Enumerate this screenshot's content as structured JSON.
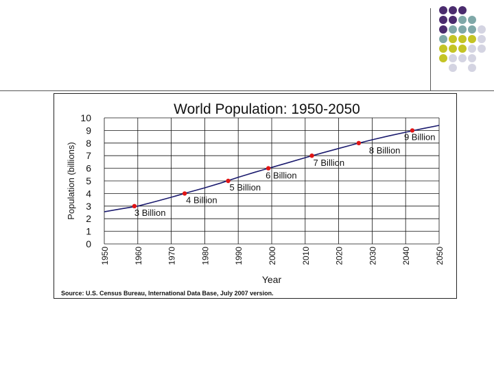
{
  "chart_data": {
    "type": "line",
    "title": "World Population: 1950-2050",
    "xlabel": "Year",
    "ylabel": "Population (billions)",
    "xlim": [
      1950,
      2050
    ],
    "ylim": [
      0,
      10
    ],
    "x_ticks": [
      "1950",
      "1960",
      "1970",
      "1980",
      "1990",
      "2000",
      "2010",
      "2020",
      "2030",
      "2040",
      "2050"
    ],
    "y_ticks": [
      "0",
      "1",
      "2",
      "3",
      "4",
      "5",
      "6",
      "7",
      "8",
      "9",
      "10"
    ],
    "grid": true,
    "series": [
      {
        "name": "World population",
        "x": [
          1950,
          1955,
          1960,
          1965,
          1970,
          1975,
          1980,
          1985,
          1990,
          1995,
          2000,
          2005,
          2010,
          2015,
          2020,
          2025,
          2030,
          2035,
          2040,
          2045,
          2050
        ],
        "y": [
          2.55,
          2.78,
          3.0,
          3.34,
          3.7,
          4.08,
          4.45,
          4.85,
          5.28,
          5.69,
          6.07,
          6.45,
          6.84,
          7.21,
          7.57,
          7.93,
          8.26,
          8.57,
          8.86,
          9.14,
          9.4
        ],
        "color": "#1a1a6e"
      }
    ],
    "milestones": [
      {
        "x": 1959,
        "y": 3,
        "label": "3 Billion"
      },
      {
        "x": 1974,
        "y": 4,
        "label": "4 Billion"
      },
      {
        "x": 1987,
        "y": 5,
        "label": "5 Billion"
      },
      {
        "x": 1999,
        "y": 6,
        "label": "6 Billion"
      },
      {
        "x": 2012,
        "y": 7,
        "label": "7 Billion"
      },
      {
        "x": 2026,
        "y": 8,
        "label": "8 Billion"
      },
      {
        "x": 2042,
        "y": 9,
        "label": "9 Billion"
      }
    ],
    "marker_color": "#e01515",
    "source": "Source: U.S. Census Bureau, International Data Base, July 2007 version."
  },
  "decor": {
    "dot_colors": {
      "purple": "#4b2c6e",
      "teal": "#7fa8a8",
      "olive": "#c4c425",
      "lavender": "#d4d4e2"
    }
  }
}
